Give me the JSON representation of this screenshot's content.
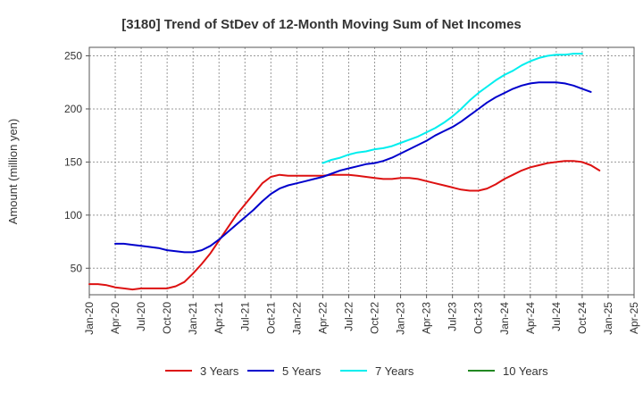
{
  "chart_data": {
    "type": "line",
    "title": "[3180]  Trend of StDev of 12-Month Moving Sum of Net Incomes",
    "ylabel": "Amount (million yen)",
    "xlabel": "",
    "ylim": [
      25,
      258
    ],
    "yticks": [
      50,
      100,
      150,
      200,
      250
    ],
    "x_ticks": [
      "Jan-20",
      "Apr-20",
      "Jul-20",
      "Oct-20",
      "Jan-21",
      "Apr-21",
      "Jul-21",
      "Oct-21",
      "Jan-22",
      "Apr-22",
      "Jul-22",
      "Oct-22",
      "Jan-23",
      "Apr-23",
      "Jul-23",
      "Oct-23",
      "Jan-24",
      "Apr-24",
      "Jul-24",
      "Oct-24",
      "Jan-25",
      "Apr-25"
    ],
    "grid": true,
    "legend_position": "bottom",
    "series": [
      {
        "name": "3 Years",
        "color": "#dd1111",
        "points": [
          [
            "Jan-20",
            35
          ],
          [
            "Feb-20",
            35
          ],
          [
            "Mar-20",
            34
          ],
          [
            "Apr-20",
            32
          ],
          [
            "May-20",
            31
          ],
          [
            "Jun-20",
            30
          ],
          [
            "Jul-20",
            31
          ],
          [
            "Aug-20",
            31
          ],
          [
            "Sep-20",
            31
          ],
          [
            "Oct-20",
            31
          ],
          [
            "Nov-20",
            33
          ],
          [
            "Dec-20",
            37
          ],
          [
            "Jan-21",
            45
          ],
          [
            "Feb-21",
            54
          ],
          [
            "Mar-21",
            64
          ],
          [
            "Apr-21",
            76
          ],
          [
            "May-21",
            88
          ],
          [
            "Jun-21",
            100
          ],
          [
            "Jul-21",
            110
          ],
          [
            "Aug-21",
            120
          ],
          [
            "Sep-21",
            130
          ],
          [
            "Oct-21",
            136
          ],
          [
            "Nov-21",
            138
          ],
          [
            "Dec-21",
            137
          ],
          [
            "Jan-22",
            137
          ],
          [
            "Feb-22",
            137
          ],
          [
            "Mar-22",
            137
          ],
          [
            "Apr-22",
            137
          ],
          [
            "May-22",
            138
          ],
          [
            "Jun-22",
            138
          ],
          [
            "Jul-22",
            138
          ],
          [
            "Aug-22",
            137
          ],
          [
            "Sep-22",
            136
          ],
          [
            "Oct-22",
            135
          ],
          [
            "Nov-22",
            134
          ],
          [
            "Dec-22",
            134
          ],
          [
            "Jan-23",
            135
          ],
          [
            "Feb-23",
            135
          ],
          [
            "Mar-23",
            134
          ],
          [
            "Apr-23",
            132
          ],
          [
            "May-23",
            130
          ],
          [
            "Jun-23",
            128
          ],
          [
            "Jul-23",
            126
          ],
          [
            "Aug-23",
            124
          ],
          [
            "Sep-23",
            123
          ],
          [
            "Oct-23",
            123
          ],
          [
            "Nov-23",
            125
          ],
          [
            "Dec-23",
            129
          ],
          [
            "Jan-24",
            134
          ],
          [
            "Feb-24",
            138
          ],
          [
            "Mar-24",
            142
          ],
          [
            "Apr-24",
            145
          ],
          [
            "May-24",
            147
          ],
          [
            "Jun-24",
            149
          ],
          [
            "Jul-24",
            150
          ],
          [
            "Aug-24",
            151
          ],
          [
            "Sep-24",
            151
          ],
          [
            "Oct-24",
            150
          ],
          [
            "Nov-24",
            147
          ],
          [
            "Dec-24",
            142
          ]
        ]
      },
      {
        "name": "5 Years",
        "color": "#0000cc",
        "points": [
          [
            "Apr-20",
            73
          ],
          [
            "May-20",
            73
          ],
          [
            "Jun-20",
            72
          ],
          [
            "Jul-20",
            71
          ],
          [
            "Aug-20",
            70
          ],
          [
            "Sep-20",
            69
          ],
          [
            "Oct-20",
            67
          ],
          [
            "Nov-20",
            66
          ],
          [
            "Dec-20",
            65
          ],
          [
            "Jan-21",
            65
          ],
          [
            "Feb-21",
            67
          ],
          [
            "Mar-21",
            71
          ],
          [
            "Apr-21",
            77
          ],
          [
            "May-21",
            84
          ],
          [
            "Jun-21",
            91
          ],
          [
            "Jul-21",
            98
          ],
          [
            "Aug-21",
            105
          ],
          [
            "Sep-21",
            113
          ],
          [
            "Oct-21",
            120
          ],
          [
            "Nov-21",
            125
          ],
          [
            "Dec-21",
            128
          ],
          [
            "Jan-22",
            130
          ],
          [
            "Feb-22",
            132
          ],
          [
            "Mar-22",
            134
          ],
          [
            "Apr-22",
            136
          ],
          [
            "May-22",
            139
          ],
          [
            "Jun-22",
            142
          ],
          [
            "Jul-22",
            144
          ],
          [
            "Aug-22",
            146
          ],
          [
            "Sep-22",
            148
          ],
          [
            "Oct-22",
            149
          ],
          [
            "Nov-22",
            151
          ],
          [
            "Dec-22",
            154
          ],
          [
            "Jan-23",
            158
          ],
          [
            "Feb-23",
            162
          ],
          [
            "Mar-23",
            166
          ],
          [
            "Apr-23",
            170
          ],
          [
            "May-23",
            175
          ],
          [
            "Jun-23",
            179
          ],
          [
            "Jul-23",
            183
          ],
          [
            "Aug-23",
            188
          ],
          [
            "Sep-23",
            194
          ],
          [
            "Oct-23",
            200
          ],
          [
            "Nov-23",
            206
          ],
          [
            "Dec-23",
            211
          ],
          [
            "Jan-24",
            215
          ],
          [
            "Feb-24",
            219
          ],
          [
            "Mar-24",
            222
          ],
          [
            "Apr-24",
            224
          ],
          [
            "May-24",
            225
          ],
          [
            "Jun-24",
            225
          ],
          [
            "Jul-24",
            225
          ],
          [
            "Aug-24",
            224
          ],
          [
            "Sep-24",
            222
          ],
          [
            "Oct-24",
            219
          ],
          [
            "Nov-24",
            216
          ]
        ]
      },
      {
        "name": "7 Years",
        "color": "#00eeee",
        "points": [
          [
            "Apr-22",
            149
          ],
          [
            "May-22",
            152
          ],
          [
            "Jun-22",
            154
          ],
          [
            "Jul-22",
            157
          ],
          [
            "Aug-22",
            159
          ],
          [
            "Sep-22",
            160
          ],
          [
            "Oct-22",
            162
          ],
          [
            "Nov-22",
            163
          ],
          [
            "Dec-22",
            165
          ],
          [
            "Jan-23",
            168
          ],
          [
            "Feb-23",
            171
          ],
          [
            "Mar-23",
            174
          ],
          [
            "Apr-23",
            178
          ],
          [
            "May-23",
            182
          ],
          [
            "Jun-23",
            187
          ],
          [
            "Jul-23",
            193
          ],
          [
            "Aug-23",
            200
          ],
          [
            "Sep-23",
            208
          ],
          [
            "Oct-23",
            215
          ],
          [
            "Nov-23",
            221
          ],
          [
            "Dec-23",
            227
          ],
          [
            "Jan-24",
            232
          ],
          [
            "Feb-24",
            236
          ],
          [
            "Mar-24",
            241
          ],
          [
            "Apr-24",
            245
          ],
          [
            "May-24",
            248
          ],
          [
            "Jun-24",
            250
          ],
          [
            "Jul-24",
            251
          ],
          [
            "Aug-24",
            251
          ],
          [
            "Sep-24",
            252
          ],
          [
            "Oct-24",
            252
          ]
        ]
      },
      {
        "name": "10 Years",
        "color": "#228822",
        "points": []
      }
    ]
  }
}
